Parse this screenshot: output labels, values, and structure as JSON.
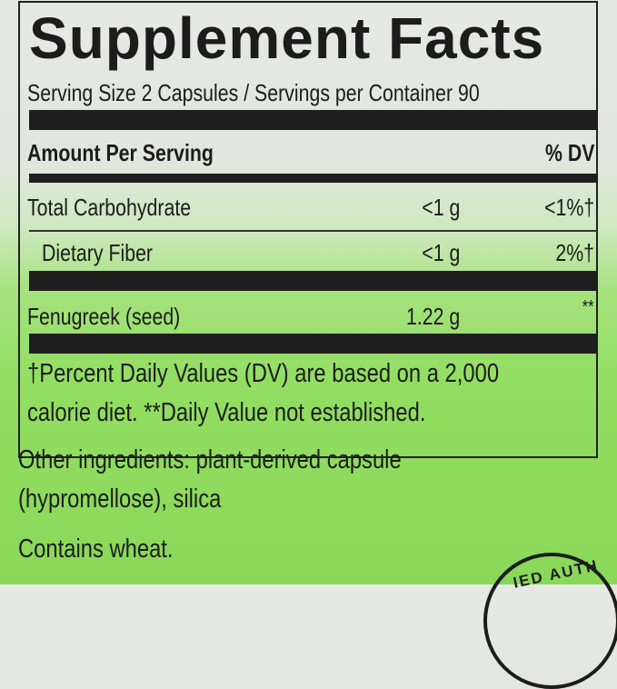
{
  "title": "Supplement Facts",
  "serving": "Serving Size 2 Capsules / Servings per Container 90",
  "header": {
    "amount": "Amount Per Serving",
    "dv": "% DV"
  },
  "rows": [
    {
      "name": "Total Carbohydrate",
      "amount": "<1 g",
      "dv": "<1%†"
    },
    {
      "name": "Dietary Fiber",
      "amount": "<1 g",
      "dv": "2%†"
    },
    {
      "name": "Fenugreek (seed)",
      "amount": "1.22 g",
      "dv": "**"
    }
  ],
  "footnote": [
    "†Percent Daily Values (DV) are based on a 2,000",
    "calorie diet. **Daily Value not established."
  ],
  "other_ingredients": [
    "Other ingredients: plant-derived capsule",
    "(hypromellose), silica"
  ],
  "allergen": "Contains wheat.",
  "seal_text": "IED AUTH"
}
